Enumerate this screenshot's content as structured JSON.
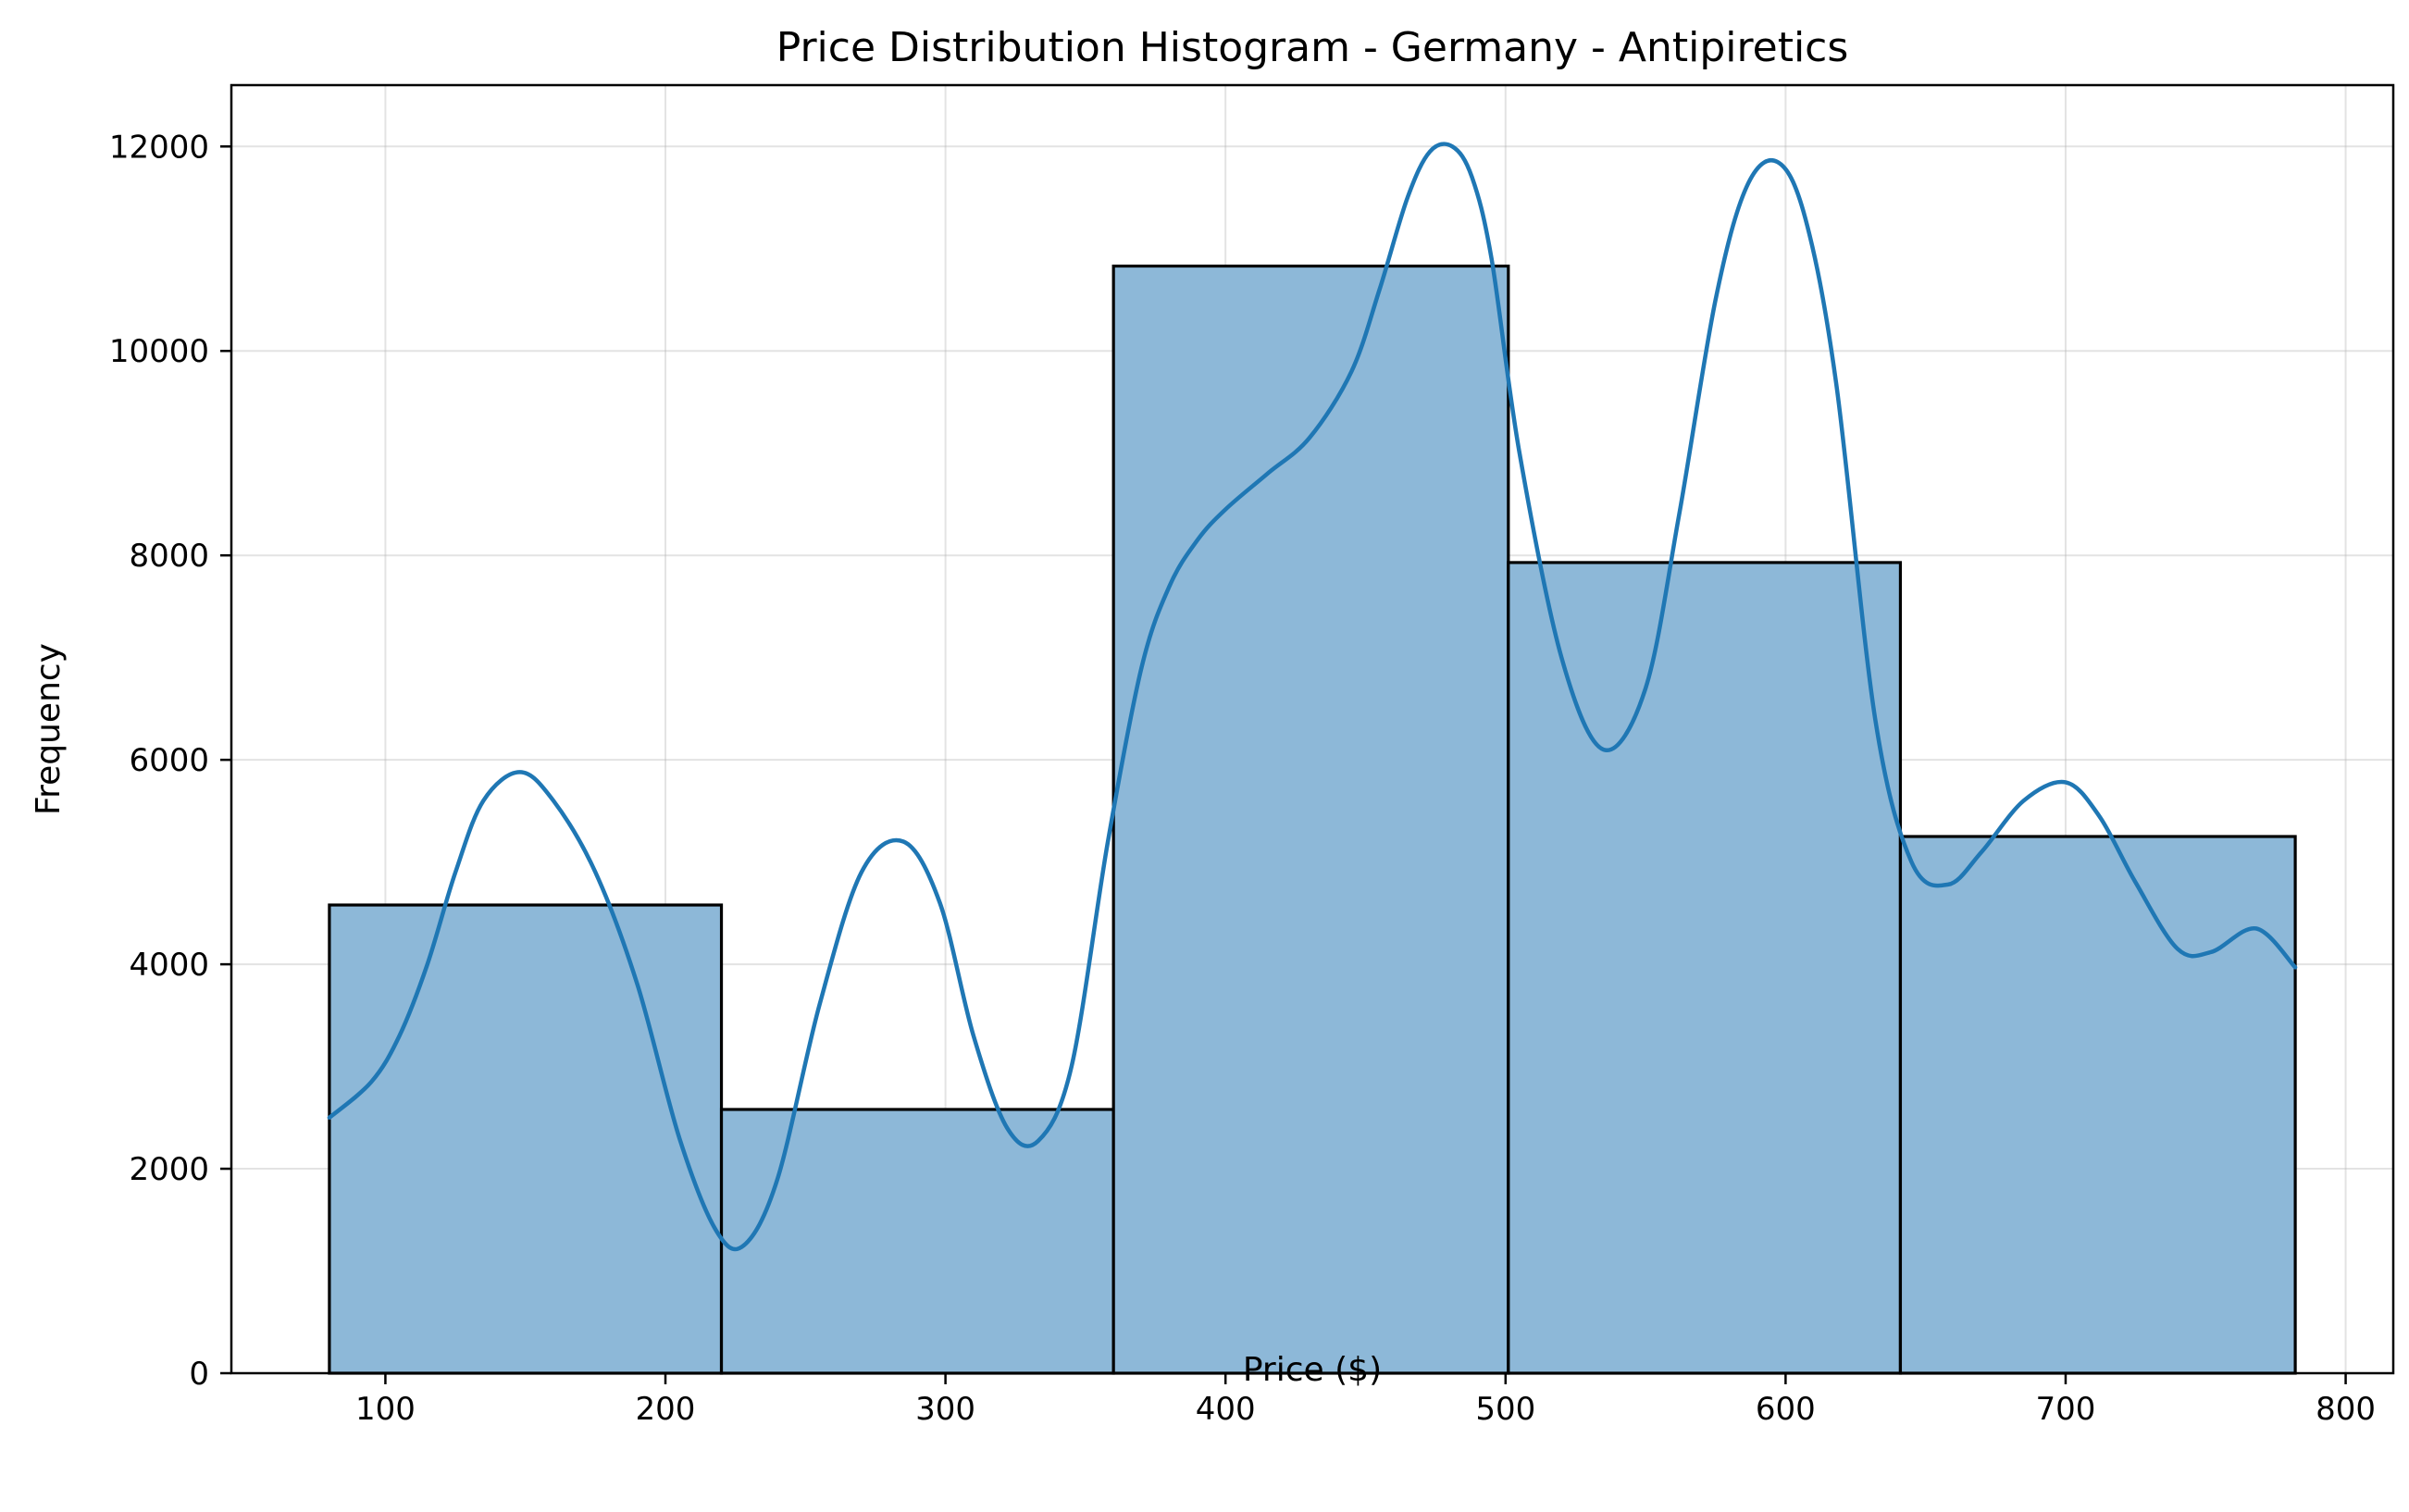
{
  "chart_data": {
    "type": "bar",
    "title": "Price Distribution Histogram - Germany - Antipiretics",
    "xlabel": "Price ($)",
    "ylabel": "Frequency",
    "xlim": [
      45,
      817
    ],
    "ylim": [
      0,
      12600
    ],
    "grid": true,
    "xticks": [
      100,
      200,
      300,
      400,
      500,
      600,
      700,
      800
    ],
    "yticks": [
      0,
      2000,
      4000,
      6000,
      8000,
      10000,
      12000
    ],
    "bins": [
      {
        "start": 80,
        "end": 220,
        "count": 4580
      },
      {
        "start": 220,
        "end": 360,
        "count": 2580
      },
      {
        "start": 360,
        "end": 501,
        "count": 10830
      },
      {
        "start": 501,
        "end": 641,
        "count": 7930
      },
      {
        "start": 641,
        "end": 782,
        "count": 5250
      }
    ],
    "kde": {
      "x": [
        80,
        95,
        105,
        115,
        125,
        135,
        148,
        160,
        175,
        190,
        205,
        218,
        228,
        240,
        255,
        270,
        285,
        298,
        310,
        322,
        333,
        345,
        358,
        370,
        380,
        390,
        400,
        415,
        430,
        445,
        455,
        465,
        473,
        481,
        488,
        495,
        505,
        520,
        535,
        550,
        562,
        575,
        586,
        597,
        607,
        618,
        632,
        645,
        658,
        670,
        685,
        700,
        712,
        725,
        740,
        752,
        768,
        782
      ],
      "y": [
        2500,
        2850,
        3300,
        4000,
        4900,
        5600,
        5880,
        5600,
        4900,
        3800,
        2300,
        1400,
        1250,
        1900,
        3600,
        4900,
        5200,
        4600,
        3300,
        2400,
        2270,
        3000,
        5200,
        6900,
        7700,
        8150,
        8450,
        8800,
        9150,
        9800,
        10600,
        11500,
        11950,
        12000,
        11700,
        10900,
        9000,
        7000,
        6100,
        6700,
        8400,
        10500,
        11600,
        11850,
        11300,
        9700,
        6400,
        5000,
        4780,
        5100,
        5600,
        5780,
        5450,
        4800,
        4150,
        4120,
        4350,
        3970
      ]
    },
    "colors": {
      "bar_fill": "#8db8d8",
      "kde_line": "#1f77b4"
    }
  }
}
